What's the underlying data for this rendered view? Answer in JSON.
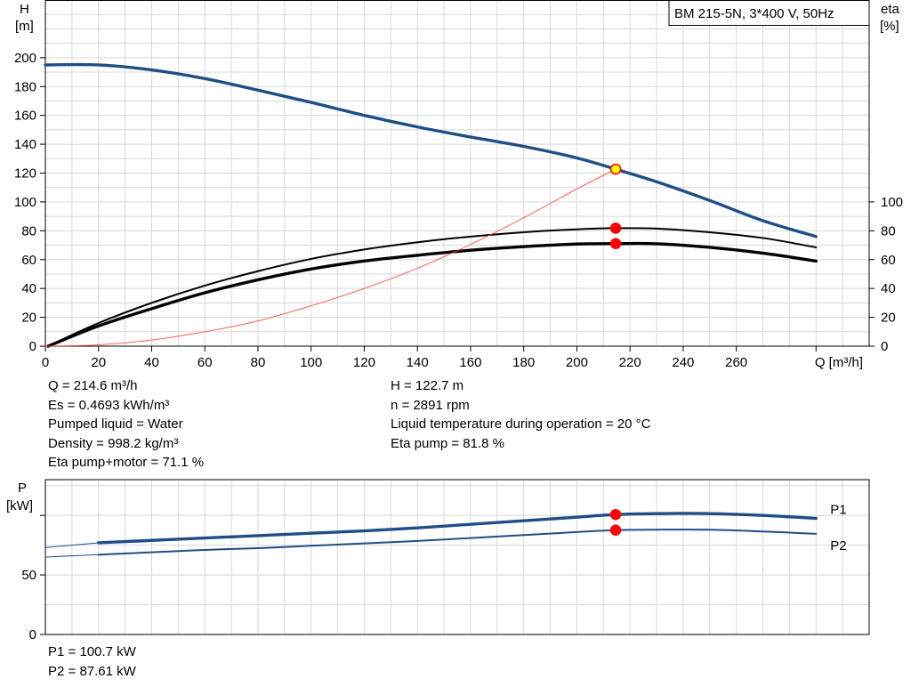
{
  "colors": {
    "head": "#1f4e86",
    "eta": "#000000",
    "system": "#ff4b3e",
    "marker": "#ff0000",
    "marker_head": "#ffff00",
    "power_label": "#1f4e86"
  },
  "chart_data": [
    {
      "type": "line",
      "title": "BM 215-5N, 3*400 V, 50Hz",
      "xlabel": "Q [m³/h]",
      "ylabel_line1": "H",
      "ylabel_line2": "[m]",
      "y2label_line1": "eta",
      "y2label_line2": "[%]",
      "xlim": [
        0,
        310
      ],
      "ylim": [
        0,
        240
      ],
      "y2lim": [
        0,
        240
      ],
      "x_ticks": [
        0,
        20,
        40,
        60,
        80,
        100,
        120,
        140,
        160,
        180,
        200,
        220,
        240,
        260
      ],
      "y_ticks": [
        0,
        20,
        40,
        60,
        80,
        100,
        120,
        140,
        160,
        180,
        200
      ],
      "y2_ticks": [
        0,
        20,
        40,
        60,
        80,
        100
      ],
      "grid": true,
      "series": [
        {
          "key": "head",
          "width": 3.4,
          "x": [
            0,
            20,
            40,
            60,
            80,
            100,
            120,
            140,
            160,
            180,
            200,
            214.6,
            230,
            250,
            270,
            290
          ],
          "y": [
            195,
            195,
            191.5,
            185.5,
            177.5,
            169,
            160,
            152,
            145,
            138.5,
            130.5,
            122.7,
            114,
            101,
            87,
            76
          ]
        },
        {
          "key": "eta_pump",
          "width": 2.0,
          "x": [
            1,
            20,
            40,
            60,
            80,
            100,
            120,
            140,
            160,
            180,
            200,
            214.6,
            230,
            250,
            270,
            290
          ],
          "y": [
            0,
            16,
            30,
            42,
            52,
            60.5,
            67,
            72,
            76,
            79,
            81,
            81.8,
            81.5,
            79,
            75,
            68.5
          ]
        },
        {
          "key": "eta_total",
          "width": 3.4,
          "x": [
            1,
            20,
            40,
            60,
            80,
            100,
            120,
            140,
            160,
            180,
            200,
            214.6,
            230,
            250,
            270,
            290
          ],
          "y": [
            0,
            14,
            26,
            37,
            46,
            53.5,
            59,
            63,
            66.5,
            69,
            70.8,
            71.1,
            71,
            68.5,
            64.5,
            59
          ]
        },
        {
          "key": "system",
          "width": 0.9,
          "color": "system",
          "x": [
            0,
            20,
            40,
            60,
            80,
            100,
            120,
            140,
            160,
            180,
            200,
            214.6
          ],
          "y": [
            0,
            0.9,
            4.3,
            10,
            17.5,
            28,
            40,
            54,
            70.5,
            89,
            109,
            122.7
          ]
        }
      ],
      "leading_segments": [
        {
          "key": "head",
          "x": [
            0,
            20
          ],
          "y": [
            195,
            195
          ]
        },
        {
          "key": "eta_pump",
          "x": [
            1,
            20
          ],
          "y": [
            0,
            16
          ]
        },
        {
          "key": "eta_total",
          "x": [
            1,
            20
          ],
          "y": [
            0,
            14
          ]
        }
      ],
      "markers": [
        {
          "x": 214.6,
          "y": 122.7,
          "fill": "marker_head",
          "stroke": "marker"
        },
        {
          "x": 214.6,
          "y": 81.8,
          "fill": "marker",
          "stroke": "marker"
        },
        {
          "x": 214.6,
          "y": 71.1,
          "fill": "marker",
          "stroke": "marker"
        }
      ]
    },
    {
      "type": "line",
      "ylabel_line1": "P",
      "ylabel_line2": "[kW]",
      "xlim": [
        0,
        310
      ],
      "ylim": [
        0,
        130
      ],
      "y_ticks": [
        0,
        50
      ],
      "grid": true,
      "series": [
        {
          "key": "P1",
          "name": "P1",
          "width": 3.4,
          "x": [
            20,
            40,
            60,
            80,
            100,
            120,
            140,
            160,
            180,
            200,
            214.6,
            230,
            250,
            270,
            290
          ],
          "y": [
            77,
            79,
            81,
            83,
            85,
            87,
            89.5,
            92.5,
            95.5,
            98.5,
            100.7,
            101.5,
            101.5,
            100,
            97.5
          ]
        },
        {
          "key": "P2",
          "name": "P2",
          "width": 2.0,
          "x": [
            20,
            40,
            60,
            80,
            100,
            120,
            140,
            160,
            180,
            200,
            214.6,
            230,
            250,
            270,
            290
          ],
          "y": [
            67,
            69,
            71,
            72.5,
            74.5,
            76.5,
            78.5,
            81,
            83.5,
            86,
            87.61,
            88,
            88,
            86.5,
            84.5
          ]
        }
      ],
      "leading_segments": [
        {
          "key": "P1",
          "x": [
            0,
            20
          ],
          "y": [
            73,
            77
          ]
        },
        {
          "key": "P2",
          "x": [
            0,
            20
          ],
          "y": [
            65,
            67
          ]
        }
      ],
      "markers": [
        {
          "x": 214.6,
          "y": 100.7,
          "fill": "marker",
          "stroke": "marker"
        },
        {
          "x": 214.6,
          "y": 87.61,
          "fill": "marker",
          "stroke": "marker"
        }
      ]
    }
  ],
  "duty_point": {
    "col1": [
      "Q = 214.6 m³/h",
      "Es = 0.4693 kWh/m³",
      "Pumped liquid = Water",
      "Density = 998.2 kg/m³",
      "Eta pump+motor = 71.1 %"
    ],
    "col2": [
      "H = 122.7 m",
      "n = 2891 rpm",
      "Liquid temperature during operation = 20 °C",
      "Eta pump = 81.8 %"
    ]
  },
  "power_point": [
    "P1 = 100.7 kW",
    "P2 = 87.61 kW"
  ]
}
